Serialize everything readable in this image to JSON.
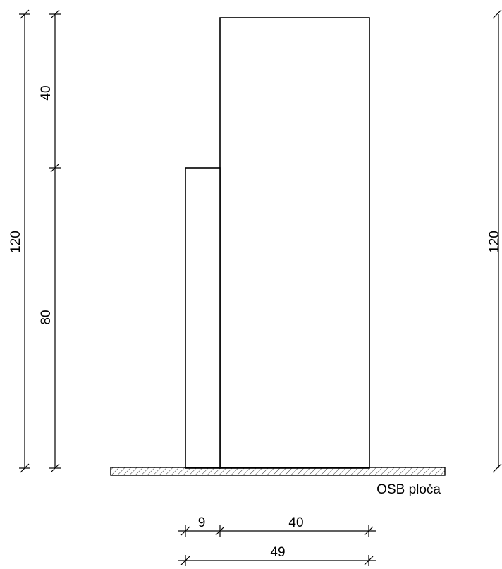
{
  "dimensions": {
    "left_total": "120",
    "left_top": "40",
    "left_bottom": "80",
    "right_total": "120",
    "bottom_small": "9",
    "bottom_large": "40",
    "bottom_total": "49"
  },
  "labels": {
    "board": "OSB ploča"
  },
  "colors": {
    "line": "#000000",
    "background": "#ffffff",
    "hatch": "#000000"
  }
}
